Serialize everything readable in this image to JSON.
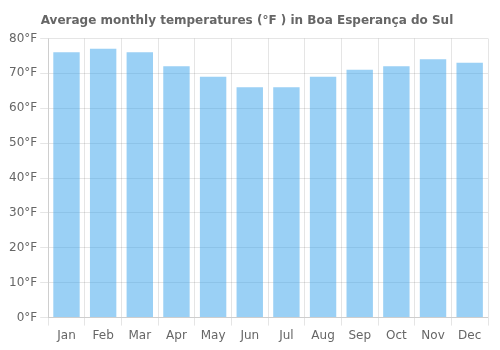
{
  "chart_data": {
    "type": "bar",
    "title": "Average monthly temperatures (°F ) in Boa Esperança do Sul",
    "categories": [
      "Jan",
      "Feb",
      "Mar",
      "Apr",
      "May",
      "Jun",
      "Jul",
      "Aug",
      "Sep",
      "Oct",
      "Nov",
      "Dec"
    ],
    "values": [
      76,
      77,
      76,
      72,
      69,
      66,
      66,
      69,
      71,
      72,
      74,
      73
    ],
    "ylim": [
      0,
      80
    ],
    "yticks": [
      {
        "value": 0,
        "label": "0°F"
      },
      {
        "value": 10,
        "label": "10°F"
      },
      {
        "value": 20,
        "label": "20°F"
      },
      {
        "value": 30,
        "label": "30°F"
      },
      {
        "value": 40,
        "label": "40°F"
      },
      {
        "value": 50,
        "label": "50°F"
      },
      {
        "value": 60,
        "label": "60°F"
      },
      {
        "value": 70,
        "label": "70°F"
      },
      {
        "value": 80,
        "label": "80°F"
      }
    ],
    "grid": true
  }
}
